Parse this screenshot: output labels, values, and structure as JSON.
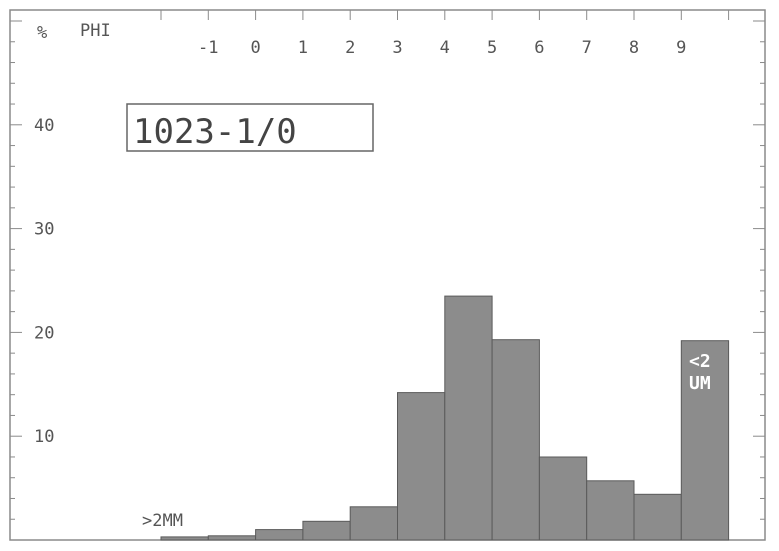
{
  "chart_data": {
    "type": "bar",
    "title": "",
    "sample_label": "1023-1/0",
    "ylabel": "%",
    "xlabel": "PHI",
    "x_ticks": [
      "-1",
      "0",
      "1",
      "2",
      "3",
      "4",
      "5",
      "6",
      "7",
      "8",
      "9"
    ],
    "y_ticks": [
      "10",
      "20",
      "30",
      "40"
    ],
    "ylim": [
      0,
      47
    ],
    "bins": [
      {
        "from": -2,
        "to": -1,
        "value": 0.3
      },
      {
        "from": -1,
        "to": 0,
        "value": 0.4
      },
      {
        "from": 0,
        "to": 1,
        "value": 1.0
      },
      {
        "from": 1,
        "to": 2,
        "value": 1.8
      },
      {
        "from": 2,
        "to": 3,
        "value": 3.2
      },
      {
        "from": 3,
        "to": 4,
        "value": 14.2
      },
      {
        "from": 4,
        "to": 5,
        "value": 23.5
      },
      {
        "from": 5,
        "to": 6,
        "value": 19.3
      },
      {
        "from": 6,
        "to": 7,
        "value": 8.0
      },
      {
        "from": 7,
        "to": 8,
        "value": 5.7
      },
      {
        "from": 8,
        "to": 9,
        "value": 4.4
      },
      {
        "from": 9,
        "to": 10,
        "value": 19.2
      }
    ],
    "annotations": {
      "coarse_label": ">2MM",
      "fine_label_line1": "<2",
      "fine_label_line2": "UM"
    },
    "colors": {
      "bar_fill": "#8c8c8c",
      "bar_stroke": "#5a5a5a",
      "frame": "#8a8a8a",
      "text": "#555555"
    }
  }
}
